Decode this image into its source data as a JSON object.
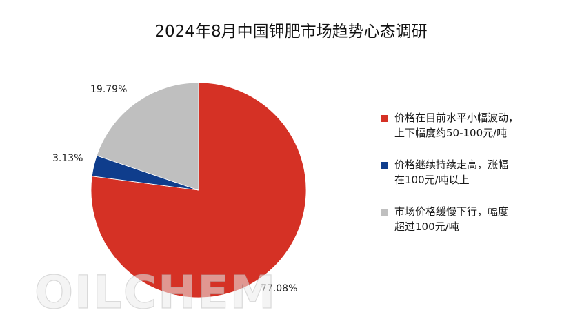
{
  "chart_data": {
    "type": "pie",
    "title": "2024年8月中国钾肥市场趋势心态调研",
    "slices": [
      {
        "legend_lines": [
          "价格在目前水平小幅波动，",
          "上下幅度约50-100元/吨"
        ],
        "value": 77.08,
        "label": "77.08%",
        "color": "#d53125"
      },
      {
        "legend_lines": [
          "价格继续持续走高，涨幅",
          "在100元/吨以上"
        ],
        "value": 3.13,
        "label": "3.13%",
        "color": "#0f3d8c"
      },
      {
        "legend_lines": [
          "市场价格缓慢下行，幅度",
          "超过100元/吨"
        ],
        "value": 19.79,
        "label": "19.79%",
        "color": "#bfbfbf"
      }
    ],
    "start_angle_deg": 0,
    "direction": "clockwise",
    "legend_position": "right"
  },
  "watermark": "OILCHEM"
}
